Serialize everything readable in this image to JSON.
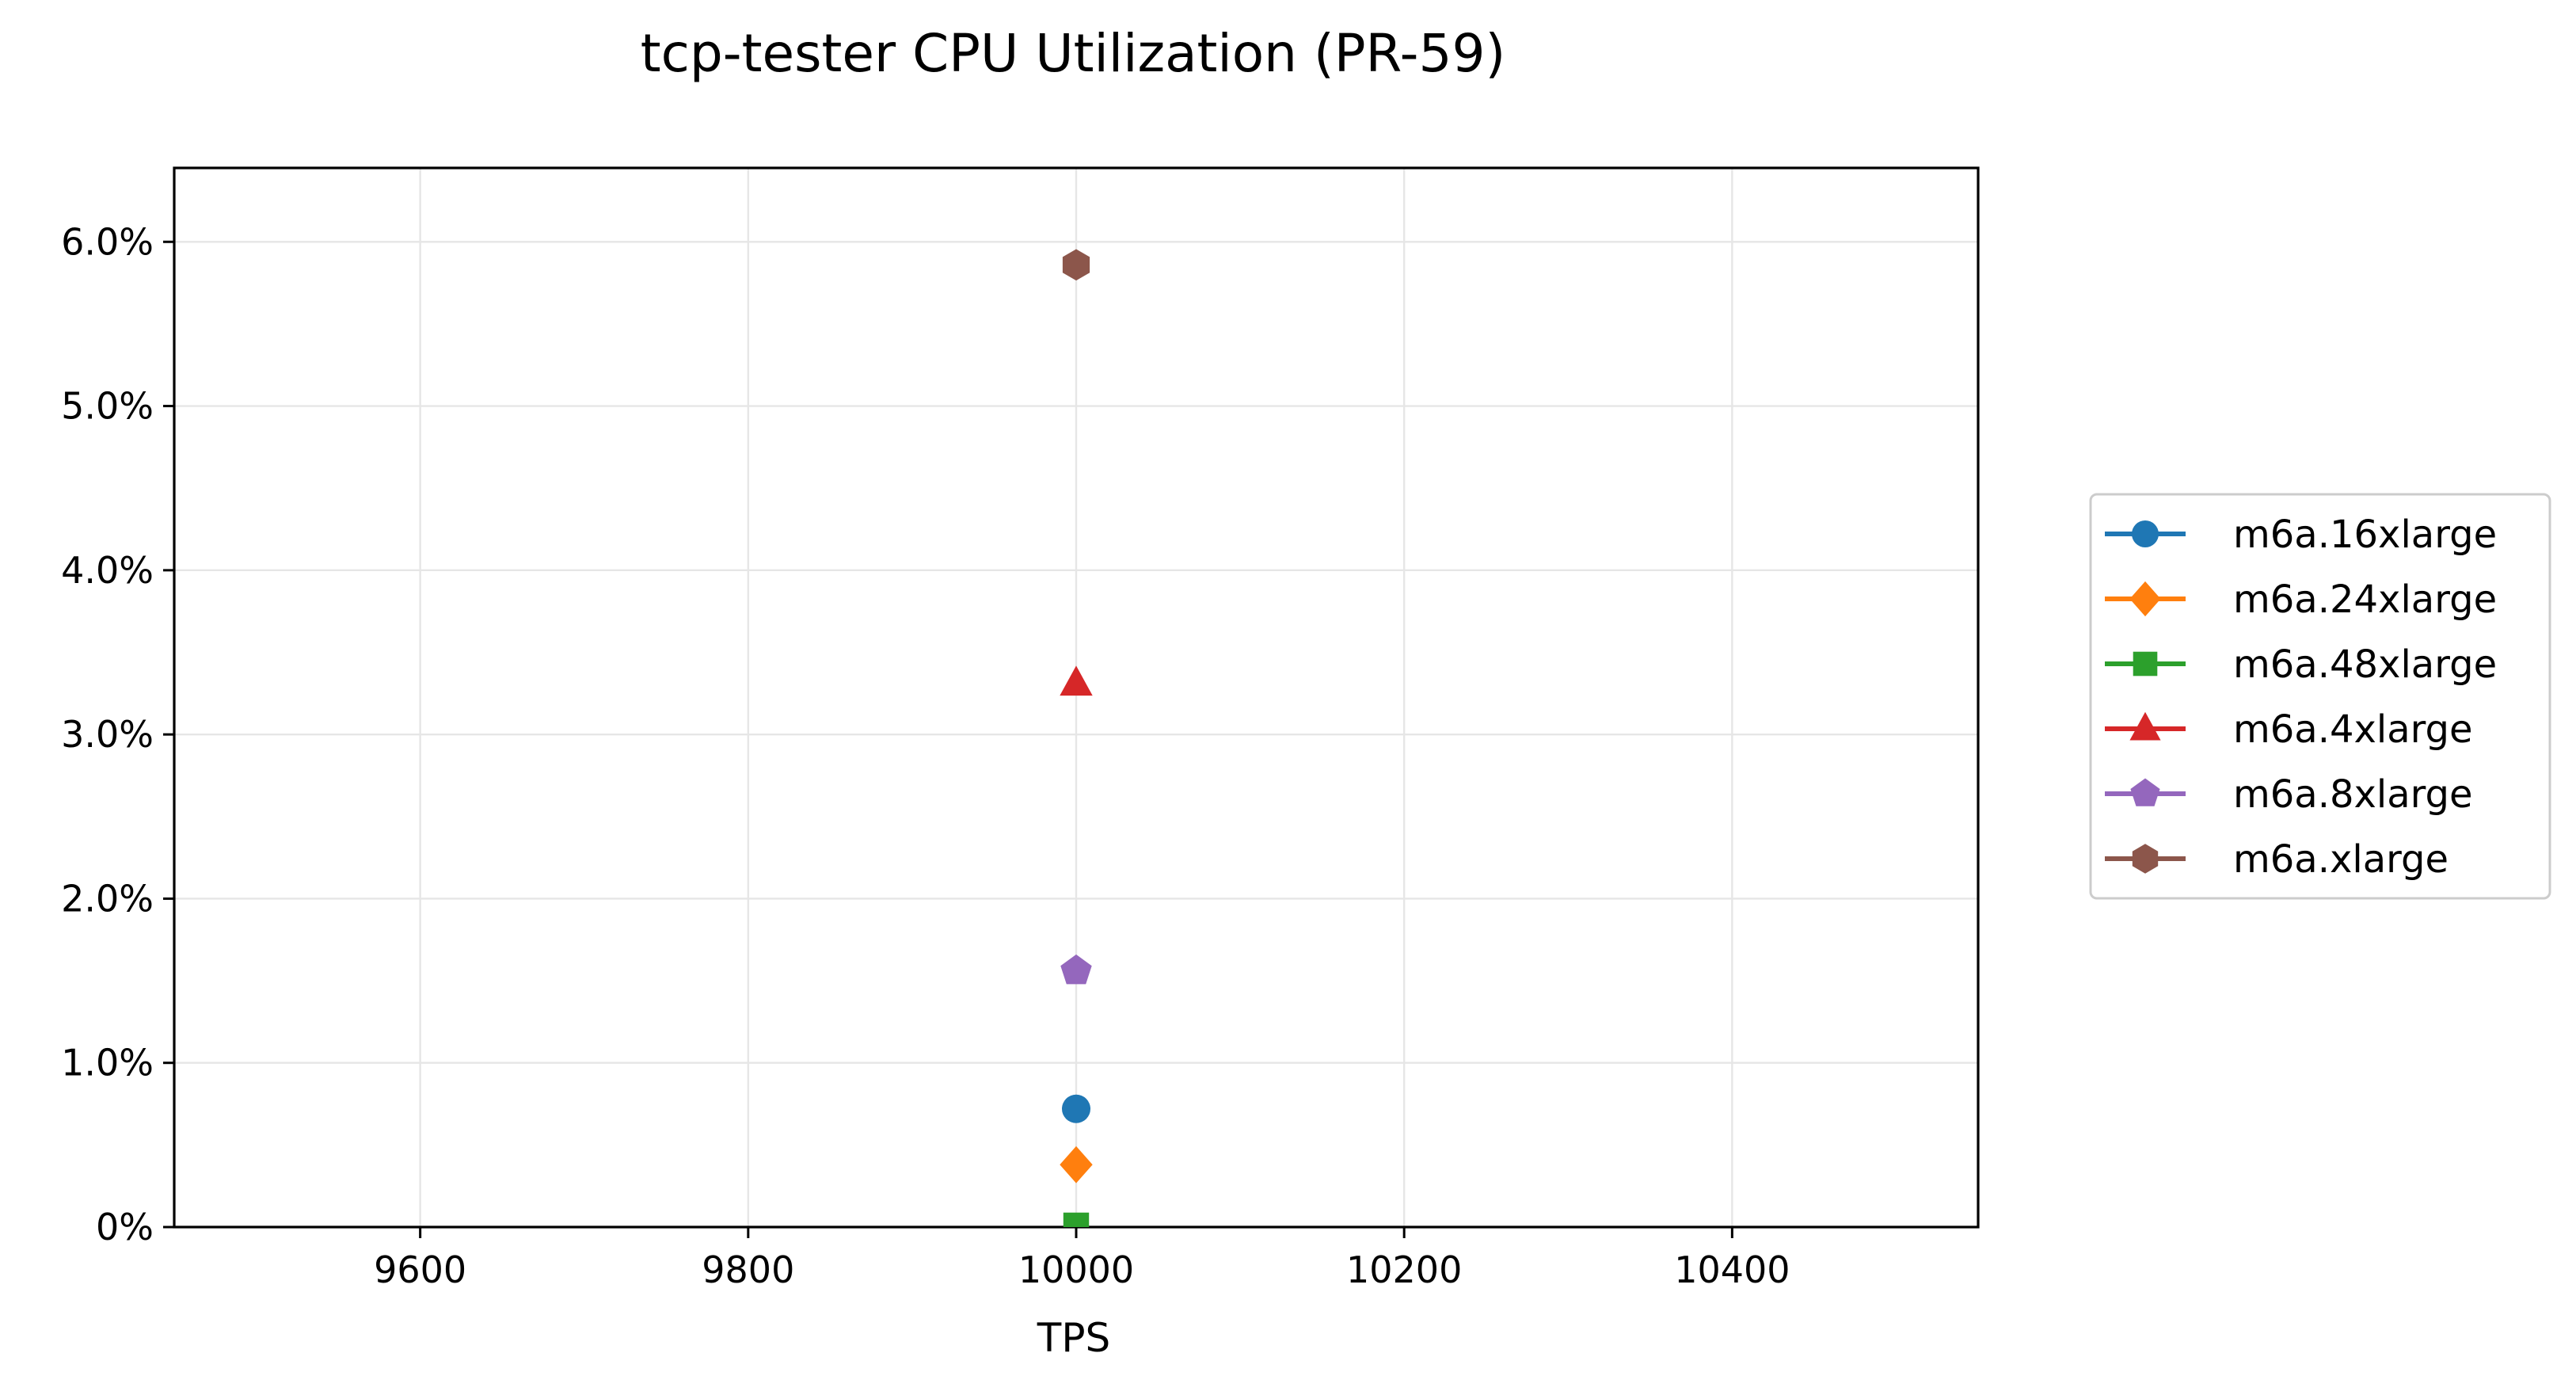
{
  "chart_data": {
    "type": "scatter",
    "title": "tcp-tester CPU Utilization (PR-59)",
    "xlabel": "TPS",
    "ylabel": "",
    "xlim": [
      9450,
      10550
    ],
    "ylim": [
      0,
      6.45
    ],
    "x_ticks": [
      9600,
      9800,
      10000,
      10200,
      10400
    ],
    "x_tick_labels": [
      "9600",
      "9800",
      "10000",
      "10200",
      "10400"
    ],
    "y_ticks": [
      0,
      1,
      2,
      3,
      4,
      5,
      6
    ],
    "y_tick_labels": [
      "0%",
      "1.0%",
      "2.0%",
      "3.0%",
      "4.0%",
      "5.0%",
      "6.0%"
    ],
    "grid": true,
    "legend_position": "outside-right",
    "series": [
      {
        "name": "m6a.16xlarge",
        "marker": "circle",
        "color": "#1f77b4",
        "x": [
          10000
        ],
        "y": [
          0.72
        ]
      },
      {
        "name": "m6a.24xlarge",
        "marker": "diamond",
        "color": "#ff7f0e",
        "x": [
          10000
        ],
        "y": [
          0.38
        ]
      },
      {
        "name": "m6a.48xlarge",
        "marker": "square",
        "color": "#2ca02c",
        "x": [
          10000
        ],
        "y": [
          0.01
        ]
      },
      {
        "name": "m6a.4xlarge",
        "marker": "triangle",
        "color": "#d62728",
        "x": [
          10000
        ],
        "y": [
          3.31
        ]
      },
      {
        "name": "m6a.8xlarge",
        "marker": "pentagon",
        "color": "#9467bd",
        "x": [
          10000
        ],
        "y": [
          1.56
        ]
      },
      {
        "name": "m6a.xlarge",
        "marker": "hexagon",
        "color": "#8c564b",
        "x": [
          10000
        ],
        "y": [
          5.86
        ]
      }
    ]
  }
}
